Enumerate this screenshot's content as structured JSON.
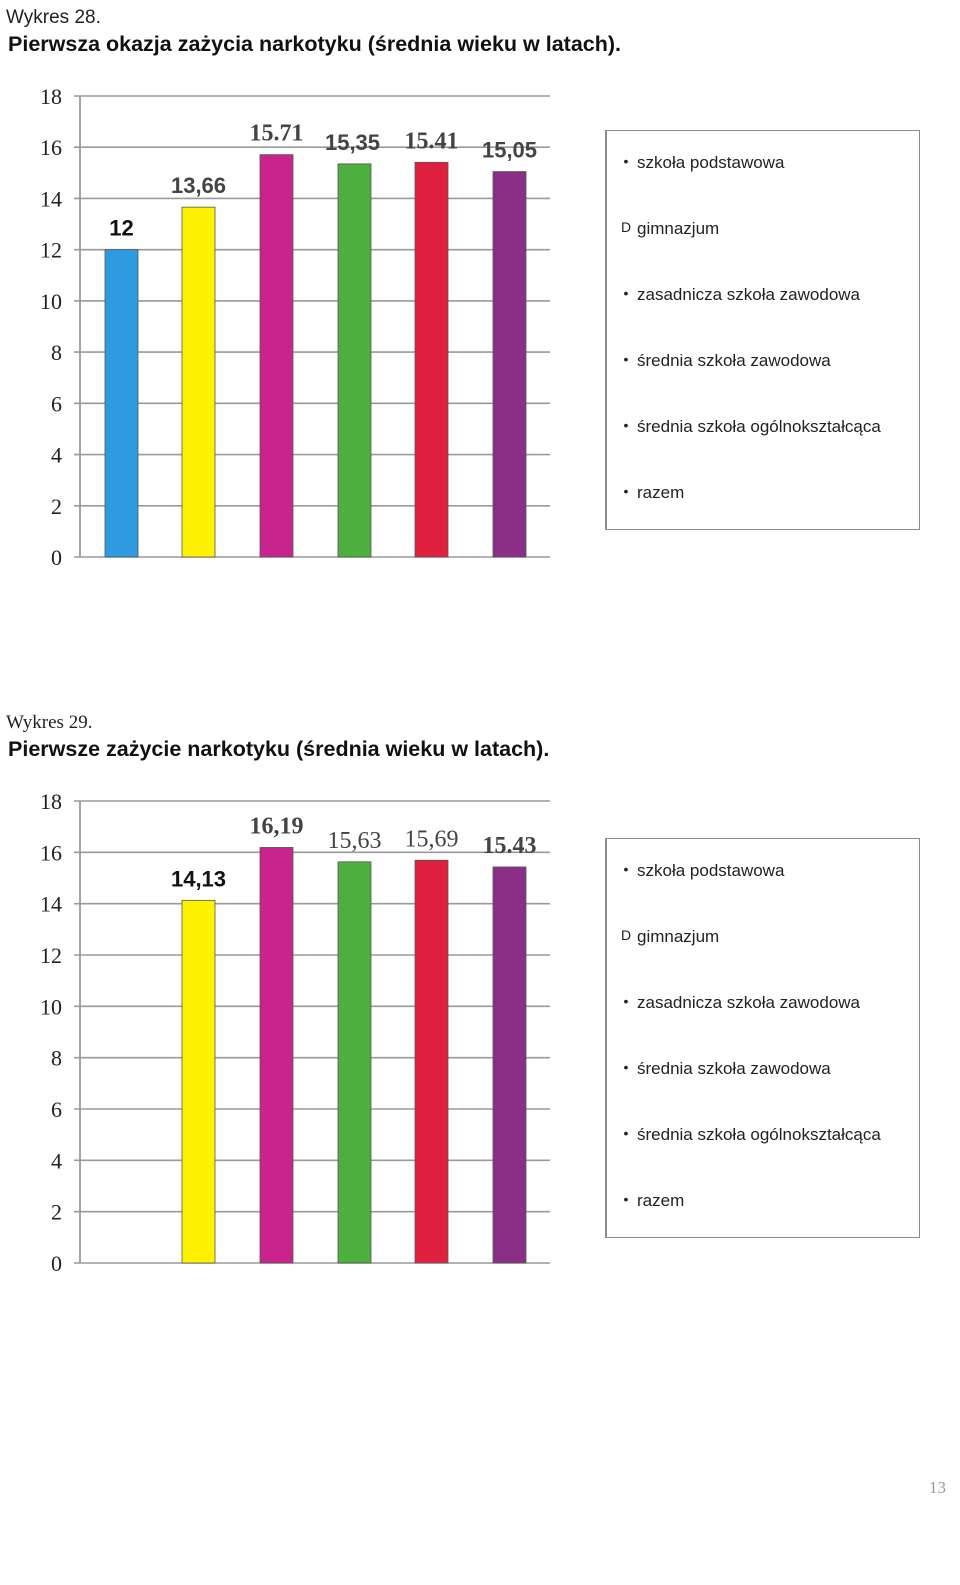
{
  "chart_data": [
    {
      "type": "bar",
      "heading": "Wykres 28.",
      "title": "Pierwsza okazja zażycia narkotyku (średnia wieku w latach).",
      "ylim": [
        0,
        18
      ],
      "yticks": [
        "0",
        "2",
        "4",
        "6",
        "8",
        "10",
        "12",
        "14",
        "16",
        "18"
      ],
      "grid": true,
      "legend_position": "right",
      "categories": [
        "szkoła podstawowa",
        "gimnazjum",
        "zasadnicza szkoła zawodowa",
        "średnia szkoła zawodowa",
        "średnia szkoła ogólnokształcąca",
        "razem"
      ],
      "values": [
        12,
        13.66,
        15.71,
        15.35,
        15.41,
        15.05
      ],
      "data_labels": [
        "12",
        "13,66",
        "15.71",
        "15,35",
        "15.41",
        "15,05"
      ],
      "colors": [
        "#2e9be0",
        "#fff200",
        "#c9248c",
        "#4caf3e",
        "#e0203f",
        "#8b2f86"
      ],
      "legend": [
        {
          "mark": "•",
          "label": "szkoła podstawowa"
        },
        {
          "mark": "D",
          "label": "gimnazjum"
        },
        {
          "mark": "•",
          "label": "zasadnicza szkoła zawodowa"
        },
        {
          "mark": "•",
          "label": "średnia szkoła zawodowa"
        },
        {
          "mark": "•",
          "label": "średnia szkoła ogólnokształcąca"
        },
        {
          "mark": "•",
          "label": "razem"
        }
      ]
    },
    {
      "type": "bar",
      "heading": "Wykres 29.",
      "title": "Pierwsze zażycie narkotyku (średnia wieku w latach).",
      "ylim": [
        0,
        18
      ],
      "yticks": [
        "0",
        "2",
        "4",
        "6",
        "8",
        "10",
        "12",
        "14",
        "16",
        "18"
      ],
      "grid": true,
      "legend_position": "right",
      "categories": [
        "szkoła podstawowa",
        "gimnazjum",
        "zasadnicza szkoła zawodowa",
        "średnia szkoła zawodowa",
        "średnia szkoła ogólnokształcąca",
        "razem"
      ],
      "values": [
        null,
        14.13,
        16.19,
        15.63,
        15.69,
        15.43
      ],
      "data_labels": [
        "",
        "14,13",
        "16,19",
        "15,63",
        "15,69",
        "15.43"
      ],
      "colors": [
        "#2e9be0",
        "#fff200",
        "#c9248c",
        "#4caf3e",
        "#e0203f",
        "#8b2f86"
      ],
      "legend": [
        {
          "mark": "•",
          "label": "szkoła podstawowa"
        },
        {
          "mark": "D",
          "label": "gimnazjum"
        },
        {
          "mark": "•",
          "label": "zasadnicza szkoła zawodowa"
        },
        {
          "mark": "•",
          "label": "średnia szkoła zawodowa"
        },
        {
          "mark": "•",
          "label": "średnia szkoła ogólnokształcąca"
        },
        {
          "mark": "•",
          "label": "razem"
        }
      ]
    }
  ],
  "page_number": "13"
}
